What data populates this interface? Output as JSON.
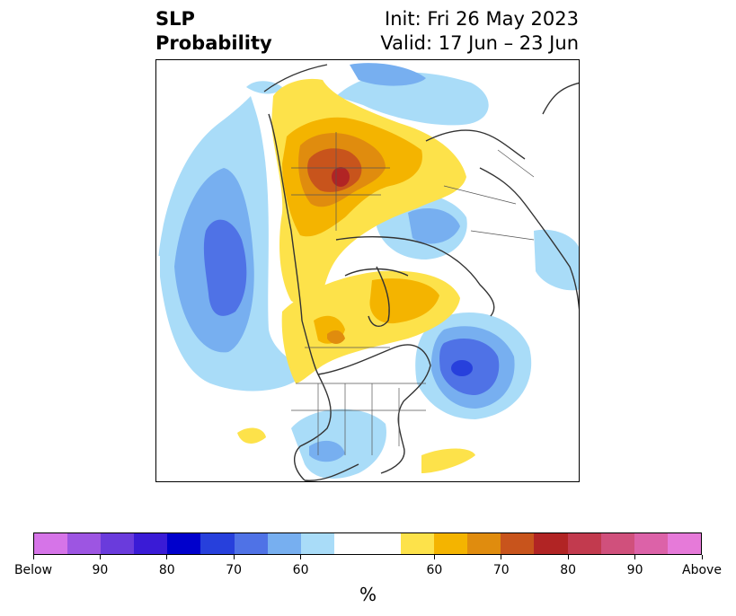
{
  "title": {
    "left_line1": "SLP",
    "left_line2": "Probability",
    "right_line1": "Init: Fri 26 May 2023",
    "right_line2": "Valid: 17 Jun – 23 Jun"
  },
  "colorbar": {
    "colors": [
      "#d674e8",
      "#9d55e2",
      "#6a3bdc",
      "#3a1bd6",
      "#0000cc",
      "#2740dc",
      "#4f72e6",
      "#77aff0",
      "#a9dcf8",
      "#ffffff",
      "#ffffff",
      "#fde24a",
      "#f4b400",
      "#e08c0e",
      "#c8541c",
      "#b12424",
      "#c23a4e",
      "#d0507c",
      "#dc62a8",
      "#e67ad9"
    ],
    "ticks": [
      "Below",
      "90",
      "80",
      "70",
      "60",
      "60",
      "70",
      "80",
      "90",
      "Above"
    ],
    "units": "%"
  },
  "map": {
    "projection": "polar-stereographic-north-pacific",
    "region": "Northern Hemisphere (Pacific / North America / Arctic)",
    "anomaly_colors": {
      "below_60": "#a9dcf8",
      "below_70": "#77aff0",
      "below_80": "#4f72e6",
      "below_90": "#2740dc",
      "above_60": "#fde24a",
      "above_70": "#f4b400",
      "above_80": "#e08c0e",
      "above_90": "#c8541c",
      "above_95": "#b12424"
    }
  }
}
